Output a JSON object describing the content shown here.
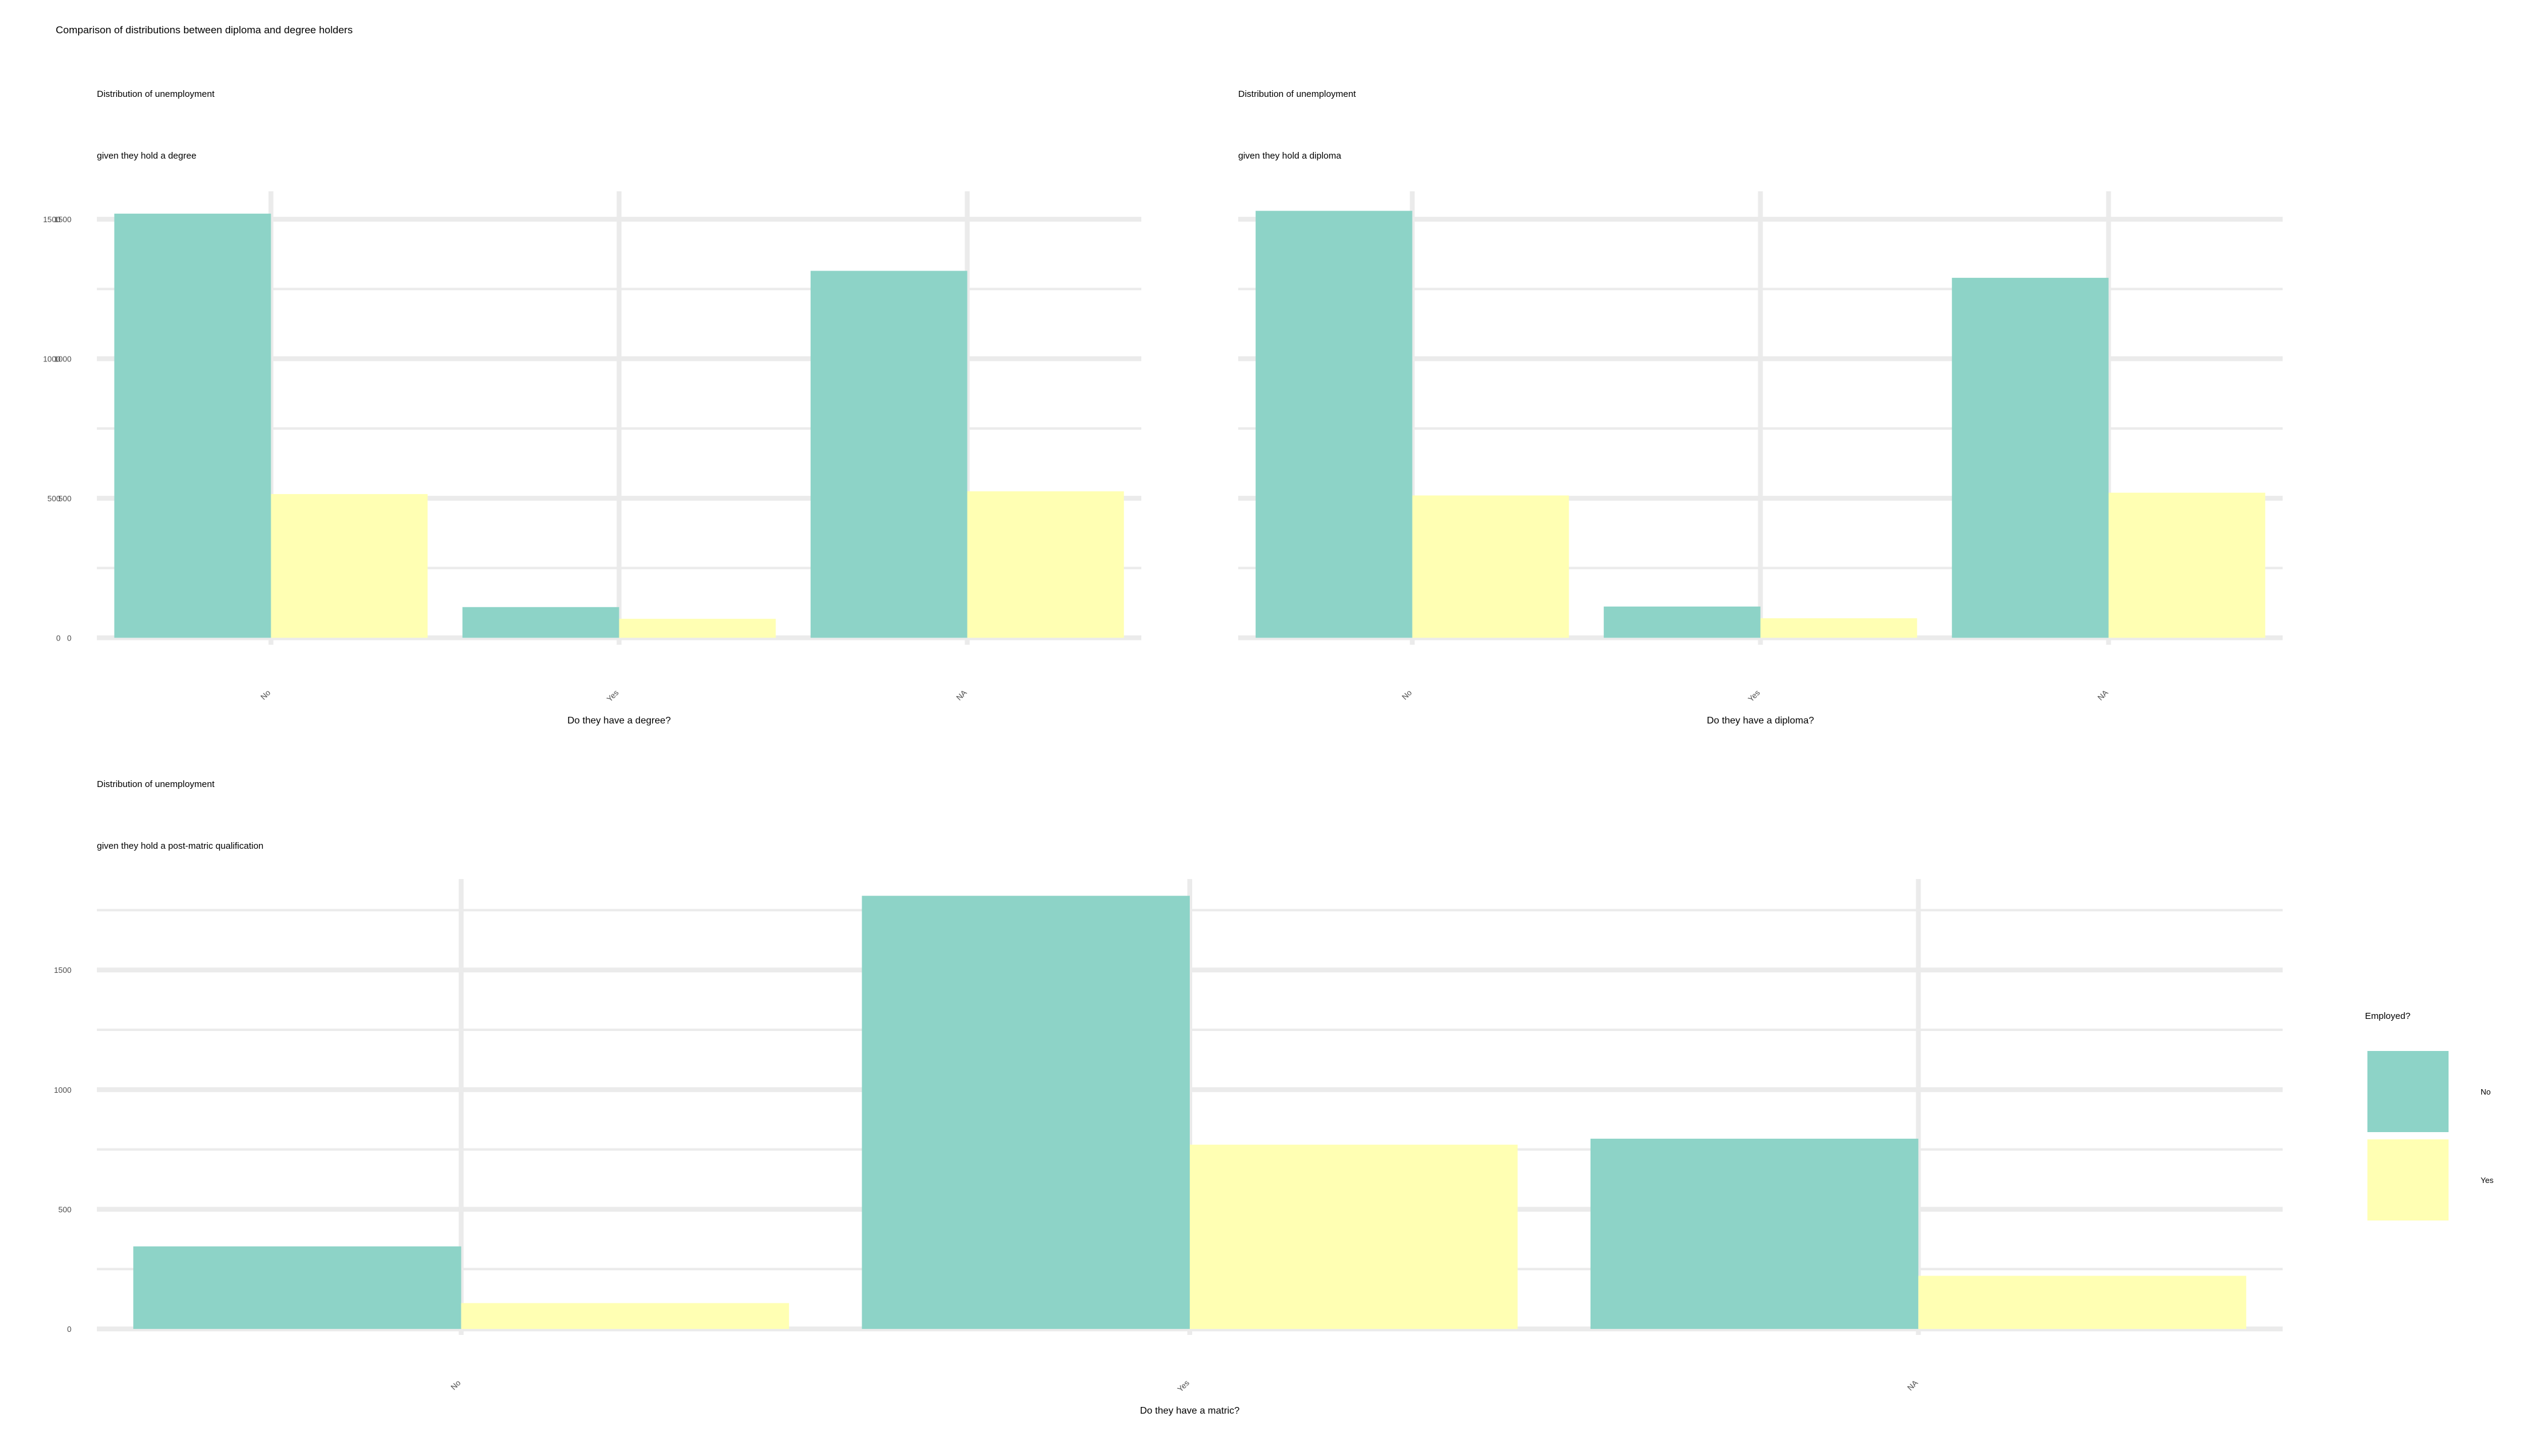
{
  "figure": {
    "title": "Comparison of distributions between diploma and degree holders",
    "background": "#ffffff"
  },
  "colors": {
    "No": "#8dd3c7",
    "Yes": "#ffffb3",
    "grid": "#ebebeb",
    "tick_text": "#4d4d4d"
  },
  "legend": {
    "title": "Employed?",
    "items": [
      {
        "label": "No",
        "color": "#8dd3c7"
      },
      {
        "label": "Yes",
        "color": "#ffffb3"
      }
    ],
    "placement": "right"
  },
  "chart_data": [
    {
      "type": "bar",
      "title": "Distribution of unemployment",
      "subtitle": "given they hold a degree",
      "xlabel": "Do they have a degree?",
      "ylabel": "",
      "categories": [
        "No",
        "Yes",
        "NA"
      ],
      "series": [
        {
          "name": "No",
          "values": [
            1520,
            110,
            1315
          ]
        },
        {
          "name": "Yes",
          "values": [
            515,
            68,
            525
          ]
        }
      ],
      "yticks": [
        0,
        500,
        1000,
        1500
      ],
      "ylim": [
        -25,
        1600
      ],
      "grid": true
    },
    {
      "type": "bar",
      "title": "Distribution of unemployment",
      "subtitle": "given they hold a diploma",
      "xlabel": "Do they have a diploma?",
      "ylabel": "",
      "categories": [
        "No",
        "Yes",
        "NA"
      ],
      "series": [
        {
          "name": "No",
          "values": [
            1530,
            112,
            1290
          ]
        },
        {
          "name": "Yes",
          "values": [
            510,
            70,
            520
          ]
        }
      ],
      "yticks": [
        0,
        500,
        1000,
        1500
      ],
      "ylim": [
        -25,
        1600
      ],
      "grid": true
    },
    {
      "type": "bar",
      "title": "Distribution of unemployment",
      "subtitle": "given they hold a post-matric qualification",
      "xlabel": "Do they have a matric?",
      "ylabel": "",
      "categories": [
        "No",
        "Yes",
        "NA"
      ],
      "series": [
        {
          "name": "No",
          "values": [
            345,
            1810,
            795
          ]
        },
        {
          "name": "Yes",
          "values": [
            108,
            770,
            222
          ]
        }
      ],
      "yticks": [
        0,
        500,
        1000,
        1500
      ],
      "ylim": [
        -25,
        1880
      ],
      "grid": true
    }
  ]
}
